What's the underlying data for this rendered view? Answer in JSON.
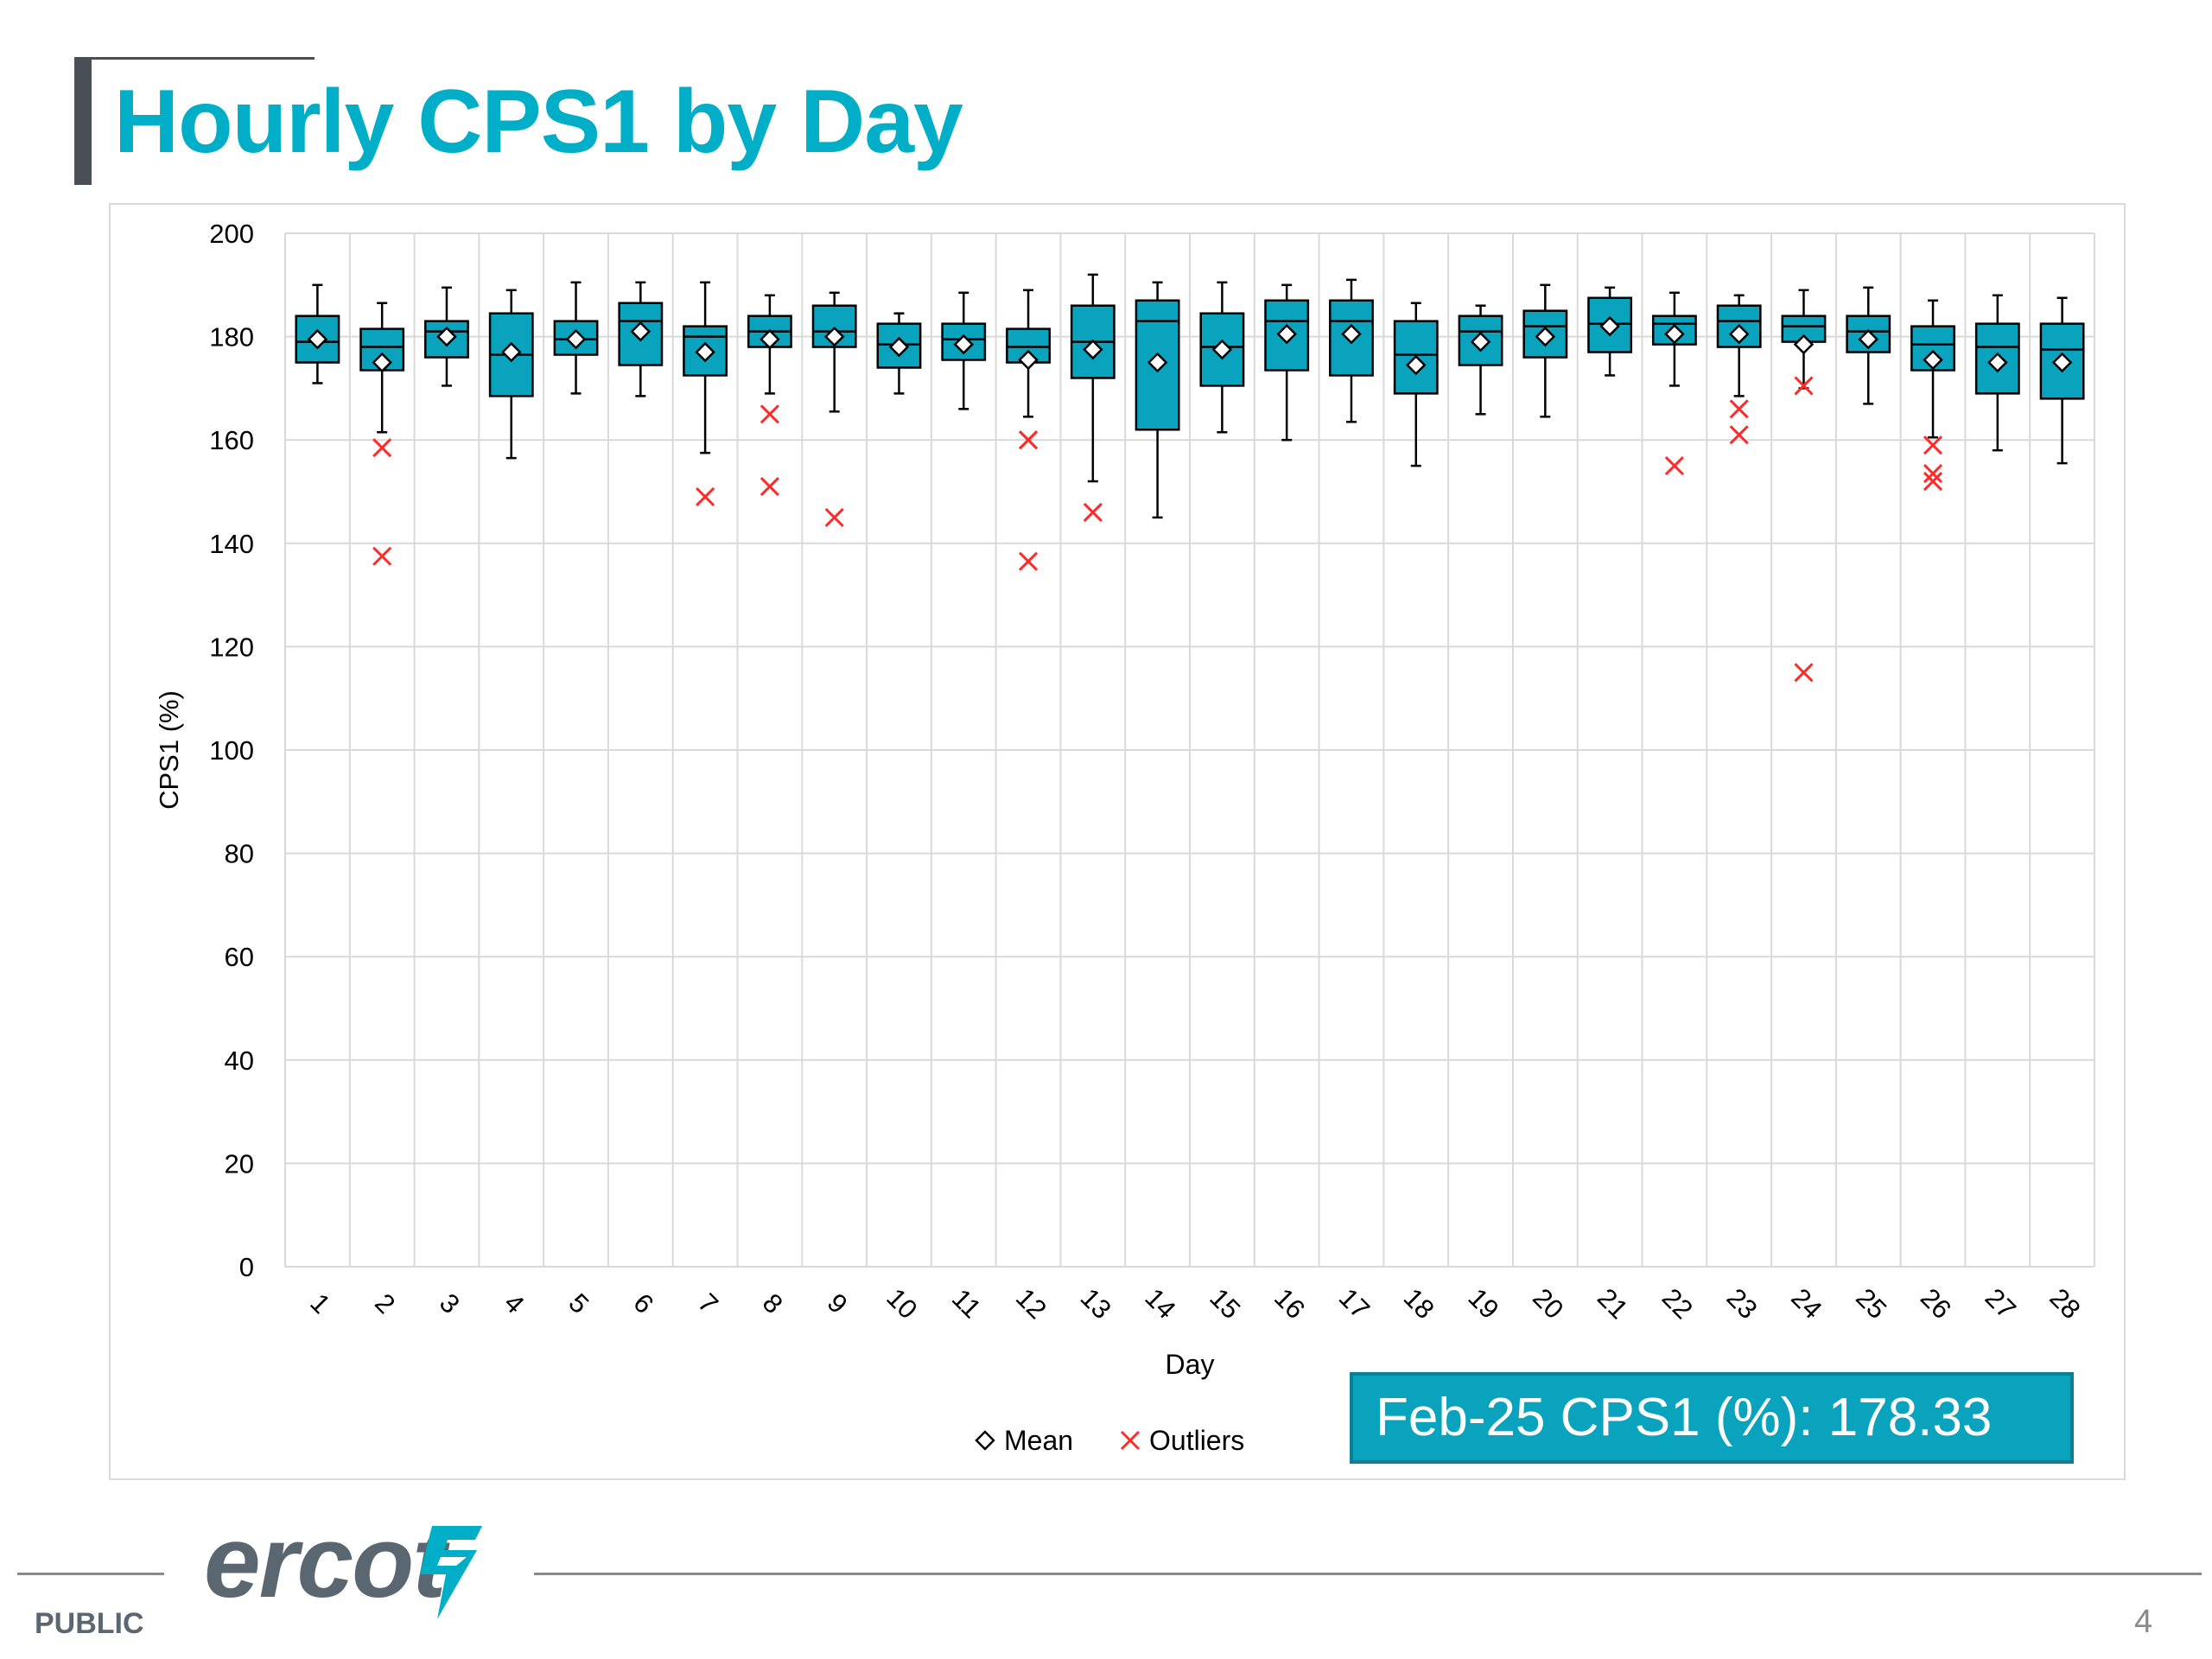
{
  "slide": {
    "title": "Hourly CPS1 by Day",
    "callout": "Feb-25 CPS1 (%): 178.33",
    "footer_label": "PUBLIC",
    "page_number": "4",
    "logo_text": "ercot"
  },
  "colors": {
    "accent": "#00aec7",
    "box_fill": "#0aa3bd",
    "outlier": "#ff2a2a",
    "grid": "#d9d9d9"
  },
  "chart_data": {
    "type": "boxplot",
    "xlabel": "Day",
    "ylabel": "CPS1 (%)",
    "ylim": [
      0,
      200
    ],
    "yticks": [
      0,
      20,
      40,
      60,
      80,
      100,
      120,
      140,
      160,
      180,
      200
    ],
    "grid": true,
    "legend": {
      "position": "bottom-center",
      "entries": [
        {
          "label": "Mean",
          "marker": "diamond"
        },
        {
          "label": "Outliers",
          "marker": "x"
        }
      ]
    },
    "categories": [
      "1",
      "2",
      "3",
      "4",
      "5",
      "6",
      "7",
      "8",
      "9",
      "10",
      "11",
      "12",
      "13",
      "14",
      "15",
      "16",
      "17",
      "18",
      "19",
      "20",
      "21",
      "22",
      "23",
      "24",
      "25",
      "26",
      "27",
      "28"
    ],
    "boxes": [
      {
        "min": 171,
        "q1": 175,
        "median": 179,
        "q3": 184,
        "max": 190,
        "mean": 179.5,
        "outliers": []
      },
      {
        "min": 161.5,
        "q1": 173.5,
        "median": 178,
        "q3": 181.5,
        "max": 186.5,
        "mean": 175,
        "outliers": [
          158.5,
          137.5
        ]
      },
      {
        "min": 170.5,
        "q1": 176,
        "median": 181,
        "q3": 183,
        "max": 189.5,
        "mean": 180,
        "outliers": []
      },
      {
        "min": 156.5,
        "q1": 168.5,
        "median": 176.5,
        "q3": 184.5,
        "max": 189,
        "mean": 177,
        "outliers": []
      },
      {
        "min": 169,
        "q1": 176.5,
        "median": 179.5,
        "q3": 183,
        "max": 190.5,
        "mean": 179.5,
        "outliers": []
      },
      {
        "min": 168.5,
        "q1": 174.5,
        "median": 183,
        "q3": 186.5,
        "max": 190.5,
        "mean": 181,
        "outliers": []
      },
      {
        "min": 157.5,
        "q1": 172.5,
        "median": 180,
        "q3": 182,
        "max": 190.5,
        "mean": 177,
        "outliers": [
          149
        ]
      },
      {
        "min": 169,
        "q1": 178,
        "median": 181,
        "q3": 184,
        "max": 188,
        "mean": 179.5,
        "outliers": [
          165,
          151
        ]
      },
      {
        "min": 165.5,
        "q1": 178,
        "median": 181,
        "q3": 186,
        "max": 188.5,
        "mean": 180,
        "outliers": [
          145
        ]
      },
      {
        "min": 169,
        "q1": 174,
        "median": 178.5,
        "q3": 182.5,
        "max": 184.5,
        "mean": 178,
        "outliers": []
      },
      {
        "min": 166,
        "q1": 175.5,
        "median": 179.5,
        "q3": 182.5,
        "max": 188.5,
        "mean": 178.5,
        "outliers": []
      },
      {
        "min": 164.5,
        "q1": 175,
        "median": 178,
        "q3": 181.5,
        "max": 189,
        "mean": 175.5,
        "outliers": [
          160,
          160,
          136.5
        ]
      },
      {
        "min": 152,
        "q1": 172,
        "median": 179,
        "q3": 186,
        "max": 192,
        "mean": 177.5,
        "outliers": [
          146
        ]
      },
      {
        "min": 145,
        "q1": 162,
        "median": 183,
        "q3": 187,
        "max": 190.5,
        "mean": 175,
        "outliers": []
      },
      {
        "min": 161.5,
        "q1": 170.5,
        "median": 178,
        "q3": 184.5,
        "max": 190.5,
        "mean": 177.5,
        "outliers": []
      },
      {
        "min": 160,
        "q1": 173.5,
        "median": 183,
        "q3": 187,
        "max": 190,
        "mean": 180.5,
        "outliers": []
      },
      {
        "min": 163.5,
        "q1": 172.5,
        "median": 183,
        "q3": 187,
        "max": 191,
        "mean": 180.5,
        "outliers": []
      },
      {
        "min": 155,
        "q1": 169,
        "median": 176.5,
        "q3": 183,
        "max": 186.5,
        "mean": 174.5,
        "outliers": []
      },
      {
        "min": 165,
        "q1": 174.5,
        "median": 181,
        "q3": 184,
        "max": 186,
        "mean": 179,
        "outliers": []
      },
      {
        "min": 164.5,
        "q1": 176,
        "median": 182,
        "q3": 185,
        "max": 190,
        "mean": 180,
        "outliers": []
      },
      {
        "min": 172.5,
        "q1": 177,
        "median": 182.5,
        "q3": 187.5,
        "max": 189.5,
        "mean": 182,
        "outliers": []
      },
      {
        "min": 170.5,
        "q1": 178.5,
        "median": 182.5,
        "q3": 184,
        "max": 188.5,
        "mean": 180.5,
        "outliers": [
          155
        ]
      },
      {
        "min": 168.5,
        "q1": 178,
        "median": 183,
        "q3": 186,
        "max": 188,
        "mean": 180.5,
        "outliers": [
          166,
          161
        ]
      },
      {
        "min": 170,
        "q1": 179,
        "median": 182,
        "q3": 184,
        "max": 189,
        "mean": 178.5,
        "outliers": [
          170.5,
          115
        ]
      },
      {
        "min": 167,
        "q1": 177,
        "median": 181,
        "q3": 184,
        "max": 189.5,
        "mean": 179.5,
        "outliers": []
      },
      {
        "min": 160.5,
        "q1": 173.5,
        "median": 178.5,
        "q3": 182,
        "max": 187,
        "mean": 175.5,
        "outliers": [
          159,
          153.5,
          152
        ]
      },
      {
        "min": 158,
        "q1": 169,
        "median": 178,
        "q3": 182.5,
        "max": 188,
        "mean": 175,
        "outliers": []
      },
      {
        "min": 155.5,
        "q1": 168,
        "median": 177.5,
        "q3": 182.5,
        "max": 187.5,
        "mean": 175,
        "outliers": []
      }
    ]
  }
}
